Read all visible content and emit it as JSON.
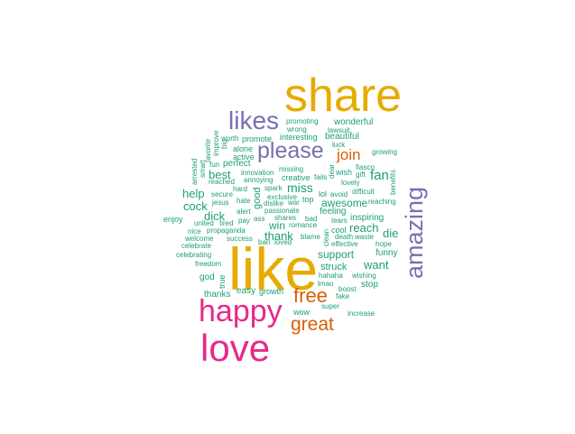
{
  "colors": {
    "teal": "#1b9e77",
    "orange": "#d95f02",
    "purple": "#7570b3",
    "magenta": "#e7298a",
    "gold": "#e6ab02"
  },
  "words": [
    {
      "text": "share",
      "color": "gold"
    },
    {
      "text": "like",
      "color": "gold"
    },
    {
      "text": "love",
      "color": "magenta"
    },
    {
      "text": "happy",
      "color": "magenta"
    },
    {
      "text": "amazing",
      "color": "purple"
    },
    {
      "text": "likes",
      "color": "purple"
    },
    {
      "text": "please",
      "color": "purple"
    },
    {
      "text": "free",
      "color": "orange"
    },
    {
      "text": "great",
      "color": "orange"
    },
    {
      "text": "join",
      "color": "orange"
    },
    {
      "text": "fan",
      "color": "teal"
    },
    {
      "text": "miss",
      "color": "teal"
    },
    {
      "text": "best",
      "color": "teal"
    },
    {
      "text": "help",
      "color": "teal"
    },
    {
      "text": "cock",
      "color": "teal"
    },
    {
      "text": "dick",
      "color": "teal"
    },
    {
      "text": "awesome",
      "color": "teal"
    },
    {
      "text": "reach",
      "color": "teal"
    },
    {
      "text": "die",
      "color": "teal"
    },
    {
      "text": "support",
      "color": "teal"
    },
    {
      "text": "want",
      "color": "teal"
    },
    {
      "text": "thank",
      "color": "teal"
    },
    {
      "text": "win",
      "color": "teal"
    },
    {
      "text": "struck",
      "color": "teal"
    },
    {
      "text": "stop",
      "color": "teal"
    },
    {
      "text": "funny",
      "color": "teal"
    },
    {
      "text": "thanks",
      "color": "teal"
    },
    {
      "text": "easy",
      "color": "teal"
    },
    {
      "text": "growth",
      "color": "teal"
    },
    {
      "text": "wow",
      "color": "teal"
    },
    {
      "text": "super",
      "color": "teal"
    },
    {
      "text": "increase",
      "color": "teal"
    },
    {
      "text": "lmao",
      "color": "teal"
    },
    {
      "text": "boost",
      "color": "teal"
    },
    {
      "text": "fake",
      "color": "teal"
    },
    {
      "text": "hahaha",
      "color": "teal"
    },
    {
      "text": "wishing",
      "color": "teal"
    },
    {
      "text": "hope",
      "color": "teal"
    },
    {
      "text": "effective",
      "color": "teal"
    },
    {
      "text": "death",
      "color": "teal"
    },
    {
      "text": "waste",
      "color": "teal"
    },
    {
      "text": "tears",
      "color": "teal"
    },
    {
      "text": "cool",
      "color": "teal"
    },
    {
      "text": "inspiring",
      "color": "teal"
    },
    {
      "text": "feeling",
      "color": "teal"
    },
    {
      "text": "lol",
      "color": "teal"
    },
    {
      "text": "avoid",
      "color": "teal"
    },
    {
      "text": "difficult",
      "color": "teal"
    },
    {
      "text": "reaching",
      "color": "teal"
    },
    {
      "text": "benefits",
      "color": "teal"
    },
    {
      "text": "growing",
      "color": "teal"
    },
    {
      "text": "fiasco",
      "color": "teal"
    },
    {
      "text": "wish",
      "color": "teal"
    },
    {
      "text": "gift",
      "color": "teal"
    },
    {
      "text": "lovely",
      "color": "teal"
    },
    {
      "text": "beautiful",
      "color": "teal"
    },
    {
      "text": "luck",
      "color": "teal"
    },
    {
      "text": "wonderful",
      "color": "teal"
    },
    {
      "text": "lawsuit",
      "color": "teal"
    },
    {
      "text": "promoting",
      "color": "teal"
    },
    {
      "text": "wrong",
      "color": "teal"
    },
    {
      "text": "interesting",
      "color": "teal"
    },
    {
      "text": "promote",
      "color": "teal"
    },
    {
      "text": "worth",
      "color": "teal"
    },
    {
      "text": "alone",
      "color": "teal"
    },
    {
      "text": "active",
      "color": "teal"
    },
    {
      "text": "perfect",
      "color": "teal"
    },
    {
      "text": "fun",
      "color": "teal"
    },
    {
      "text": "missing",
      "color": "teal"
    },
    {
      "text": "innovation",
      "color": "teal"
    },
    {
      "text": "annoying",
      "color": "teal"
    },
    {
      "text": "creative",
      "color": "teal"
    },
    {
      "text": "fails",
      "color": "teal"
    },
    {
      "text": "dear",
      "color": "teal"
    },
    {
      "text": "reached",
      "color": "teal"
    },
    {
      "text": "hard",
      "color": "teal"
    },
    {
      "text": "spark",
      "color": "teal"
    },
    {
      "text": "exclusive",
      "color": "teal"
    },
    {
      "text": "secure",
      "color": "teal"
    },
    {
      "text": "jesus",
      "color": "teal"
    },
    {
      "text": "hate",
      "color": "teal"
    },
    {
      "text": "dislike",
      "color": "teal"
    },
    {
      "text": "war",
      "color": "teal"
    },
    {
      "text": "top",
      "color": "teal"
    },
    {
      "text": "alert",
      "color": "teal"
    },
    {
      "text": "passionate",
      "color": "teal"
    },
    {
      "text": "good",
      "color": "teal"
    },
    {
      "text": "pay",
      "color": "teal"
    },
    {
      "text": "ass",
      "color": "teal"
    },
    {
      "text": "shares",
      "color": "teal"
    },
    {
      "text": "bad",
      "color": "teal"
    },
    {
      "text": "tired",
      "color": "teal"
    },
    {
      "text": "united",
      "color": "teal"
    },
    {
      "text": "enjoy",
      "color": "teal"
    },
    {
      "text": "nice",
      "color": "teal"
    },
    {
      "text": "propaganda",
      "color": "teal"
    },
    {
      "text": "romance",
      "color": "teal"
    },
    {
      "text": "blame",
      "color": "teal"
    },
    {
      "text": "clean",
      "color": "teal"
    },
    {
      "text": "welcome",
      "color": "teal"
    },
    {
      "text": "success",
      "color": "teal"
    },
    {
      "text": "ban",
      "color": "teal"
    },
    {
      "text": "loved",
      "color": "teal"
    },
    {
      "text": "celebrate",
      "color": "teal"
    },
    {
      "text": "celebrating",
      "color": "teal"
    },
    {
      "text": "freedom",
      "color": "teal"
    },
    {
      "text": "god",
      "color": "teal"
    },
    {
      "text": "true",
      "color": "teal"
    },
    {
      "text": "arrested",
      "color": "teal"
    },
    {
      "text": "smart",
      "color": "teal"
    },
    {
      "text": "favorite",
      "color": "teal"
    },
    {
      "text": "improve",
      "color": "teal"
    },
    {
      "text": "big",
      "color": "teal"
    }
  ]
}
